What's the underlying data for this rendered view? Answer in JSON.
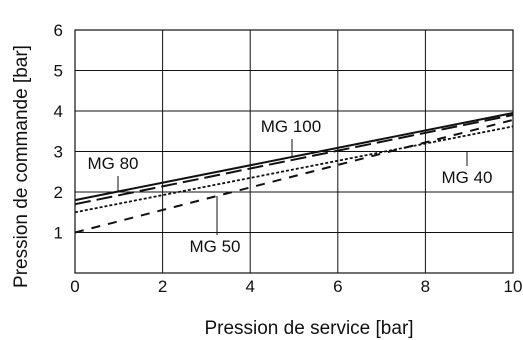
{
  "chart_data": {
    "type": "line",
    "xlabel": "Pression de service [bar]",
    "ylabel": "Pression de commande [bar]",
    "xlim": [
      0,
      10
    ],
    "ylim": [
      0,
      6
    ],
    "x_ticks": [
      0,
      2,
      4,
      6,
      8,
      10
    ],
    "y_ticks": [
      1,
      2,
      3,
      4,
      5,
      6
    ],
    "x_tick_labels": [
      "0",
      "2",
      "4",
      "6",
      "8",
      "10"
    ],
    "y_tick_labels": [
      "1",
      "2",
      "3",
      "4",
      "5",
      "6"
    ],
    "x_zero_label": "0",
    "grid": true,
    "legend": "direct labels with leader lines",
    "series": [
      {
        "name": "MG 100",
        "style": "solid",
        "x": [
          0,
          10
        ],
        "y": [
          1.8,
          3.95
        ]
      },
      {
        "name": "MG 80",
        "style": "longdash",
        "x": [
          0,
          10
        ],
        "y": [
          1.7,
          3.9
        ]
      },
      {
        "name": "MG 40",
        "style": "dotted",
        "x": [
          0,
          10
        ],
        "y": [
          1.5,
          3.62
        ]
      },
      {
        "name": "MG 50",
        "style": "dash",
        "x": [
          0,
          10
        ],
        "y": [
          1.0,
          3.78
        ]
      }
    ],
    "labels": [
      {
        "text": "MG 100",
        "series": "MG 100"
      },
      {
        "text": "MG 80",
        "series": "MG 80"
      },
      {
        "text": "MG 40",
        "series": "MG 40"
      },
      {
        "text": "MG 50",
        "series": "MG 50"
      }
    ]
  }
}
